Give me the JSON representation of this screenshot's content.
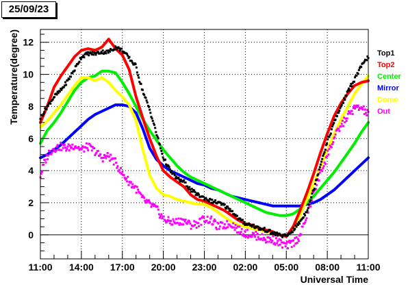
{
  "header": {
    "date": "25/09/23"
  },
  "chart_data": {
    "type": "scatter",
    "title": "",
    "xlabel": "Universal Time",
    "ylabel": "Temperature(degree)",
    "xlim": [
      0,
      24
    ],
    "ylim": [
      -1.5,
      12.8
    ],
    "x_ticks": [
      {
        "x": 0,
        "label": "11:00"
      },
      {
        "x": 3,
        "label": "14:00"
      },
      {
        "x": 6,
        "label": "17:00"
      },
      {
        "x": 9,
        "label": "20:00"
      },
      {
        "x": 12,
        "label": "23:00"
      },
      {
        "x": 15,
        "label": "02:00"
      },
      {
        "x": 18,
        "label": "05:00"
      },
      {
        "x": 21,
        "label": "08:00"
      },
      {
        "x": 24,
        "label": "11:00"
      }
    ],
    "y_ticks": [
      0,
      2,
      4,
      6,
      8,
      10,
      12
    ],
    "grid": true,
    "legend_position": "right",
    "series": [
      {
        "name": "Top1",
        "color": "#000000",
        "style": "scatter",
        "points": [
          [
            0,
            7.3
          ],
          [
            0.5,
            8.0
          ],
          [
            1,
            8.6
          ],
          [
            1.5,
            9.0
          ],
          [
            2,
            9.6
          ],
          [
            2.5,
            10.3
          ],
          [
            3,
            11.1
          ],
          [
            3.5,
            11.3
          ],
          [
            4,
            11.3
          ],
          [
            4.5,
            11.4
          ],
          [
            5,
            11.4
          ],
          [
            5.5,
            11.7
          ],
          [
            6,
            11.5
          ],
          [
            6.5,
            11.0
          ],
          [
            7,
            10.5
          ],
          [
            7.3,
            9.5
          ],
          [
            7.6,
            8.7
          ],
          [
            8,
            7.8
          ],
          [
            8.5,
            6.3
          ],
          [
            9,
            4.8
          ],
          [
            9.5,
            4.0
          ],
          [
            10,
            3.5
          ],
          [
            10.5,
            3.3
          ],
          [
            11,
            2.8
          ],
          [
            11.5,
            2.5
          ],
          [
            12,
            2.3
          ],
          [
            12.5,
            2.1
          ],
          [
            13,
            2.0
          ],
          [
            13.5,
            1.8
          ],
          [
            14,
            1.5
          ],
          [
            14.5,
            1.0
          ],
          [
            15,
            0.7
          ],
          [
            15.5,
            0.6
          ],
          [
            16,
            0.4
          ],
          [
            16.5,
            0.3
          ],
          [
            17,
            0.1
          ],
          [
            17.5,
            0.0
          ],
          [
            18,
            -0.1
          ],
          [
            18.5,
            0.3
          ],
          [
            19,
            0.8
          ],
          [
            19.5,
            1.5
          ],
          [
            20,
            2.8
          ],
          [
            20.5,
            4.4
          ],
          [
            21,
            5.8
          ],
          [
            21.5,
            7.0
          ],
          [
            22,
            8.0
          ],
          [
            22.5,
            8.9
          ],
          [
            23,
            9.7
          ],
          [
            23.5,
            10.5
          ],
          [
            24,
            11.1
          ]
        ]
      },
      {
        "name": "Top2",
        "color": "#ff0000",
        "style": "line",
        "points": [
          [
            0,
            7.0
          ],
          [
            0.5,
            8.0
          ],
          [
            1,
            9.2
          ],
          [
            1.5,
            9.9
          ],
          [
            2,
            10.5
          ],
          [
            2.5,
            11.1
          ],
          [
            3,
            11.5
          ],
          [
            3.5,
            11.6
          ],
          [
            4,
            11.5
          ],
          [
            4.5,
            11.7
          ],
          [
            5,
            12.2
          ],
          [
            5.5,
            11.6
          ],
          [
            6,
            11.2
          ],
          [
            6.5,
            10.3
          ],
          [
            7,
            8.6
          ],
          [
            7.3,
            7.8
          ],
          [
            7.6,
            7.0
          ],
          [
            8,
            6.0
          ],
          [
            8.5,
            4.9
          ],
          [
            9,
            4.0
          ],
          [
            9.5,
            3.6
          ],
          [
            10,
            3.3
          ],
          [
            10.5,
            3.0
          ],
          [
            11,
            2.5
          ],
          [
            11.5,
            2.2
          ],
          [
            12,
            2.1
          ],
          [
            12.5,
            1.9
          ],
          [
            13,
            1.7
          ],
          [
            13.5,
            1.5
          ],
          [
            14,
            1.2
          ],
          [
            14.5,
            0.9
          ],
          [
            15,
            0.7
          ],
          [
            15.5,
            0.6
          ],
          [
            16,
            0.4
          ],
          [
            16.5,
            0.3
          ],
          [
            17,
            0.2
          ],
          [
            17.5,
            0.0
          ],
          [
            18,
            -0.1
          ],
          [
            18.5,
            0.5
          ],
          [
            19,
            1.5
          ],
          [
            19.5,
            2.6
          ],
          [
            20,
            3.8
          ],
          [
            20.5,
            5.1
          ],
          [
            21,
            6.3
          ],
          [
            21.5,
            7.4
          ],
          [
            22,
            8.2
          ],
          [
            22.5,
            8.8
          ],
          [
            23,
            9.3
          ],
          [
            23.5,
            9.5
          ],
          [
            24,
            9.6
          ]
        ]
      },
      {
        "name": "Center",
        "color": "#00ee00",
        "style": "line",
        "points": [
          [
            0,
            5.7
          ],
          [
            0.5,
            6.5
          ],
          [
            1,
            7.0
          ],
          [
            1.5,
            7.6
          ],
          [
            2,
            8.3
          ],
          [
            2.5,
            9.0
          ],
          [
            3,
            9.5
          ],
          [
            3.5,
            9.8
          ],
          [
            4,
            9.9
          ],
          [
            4.5,
            10.2
          ],
          [
            5,
            10.2
          ],
          [
            5.5,
            10.1
          ],
          [
            6,
            9.5
          ],
          [
            6.5,
            8.8
          ],
          [
            7,
            8.0
          ],
          [
            7.5,
            7.2
          ],
          [
            8,
            6.5
          ],
          [
            8.5,
            5.9
          ],
          [
            9,
            5.3
          ],
          [
            9.5,
            4.8
          ],
          [
            10,
            4.3
          ],
          [
            10.5,
            3.9
          ],
          [
            11,
            3.6
          ],
          [
            11.5,
            3.4
          ],
          [
            12,
            3.2
          ],
          [
            12.5,
            3.0
          ],
          [
            13,
            2.8
          ],
          [
            13.5,
            2.6
          ],
          [
            14,
            2.4
          ],
          [
            14.5,
            2.2
          ],
          [
            15,
            2.0
          ],
          [
            15.5,
            1.8
          ],
          [
            16,
            1.6
          ],
          [
            16.5,
            1.4
          ],
          [
            17,
            1.3
          ],
          [
            17.5,
            1.2
          ],
          [
            18,
            1.2
          ],
          [
            18.5,
            1.3
          ],
          [
            19,
            1.6
          ],
          [
            19.5,
            2.0
          ],
          [
            20,
            2.4
          ],
          [
            20.5,
            2.9
          ],
          [
            21,
            3.4
          ],
          [
            21.5,
            3.9
          ],
          [
            22,
            4.5
          ],
          [
            22.5,
            5.1
          ],
          [
            23,
            5.7
          ],
          [
            23.5,
            6.4
          ],
          [
            24,
            7.0
          ]
        ]
      },
      {
        "name": "Mirror",
        "color": "#0000ff",
        "style": "line",
        "points": [
          [
            0,
            4.8
          ],
          [
            0.5,
            5.0
          ],
          [
            1,
            5.3
          ],
          [
            1.5,
            5.6
          ],
          [
            2,
            6.0
          ],
          [
            2.5,
            6.4
          ],
          [
            3,
            6.8
          ],
          [
            3.5,
            7.2
          ],
          [
            4,
            7.5
          ],
          [
            4.5,
            7.7
          ],
          [
            5,
            7.9
          ],
          [
            5.5,
            8.1
          ],
          [
            6,
            8.1
          ],
          [
            6.5,
            8.0
          ],
          [
            7,
            7.6
          ],
          [
            7.5,
            6.6
          ],
          [
            8,
            5.4
          ],
          [
            8.5,
            4.7
          ],
          [
            9,
            4.3
          ],
          [
            9.5,
            4.0
          ],
          [
            10,
            3.8
          ],
          [
            10.5,
            3.6
          ],
          [
            11,
            3.4
          ],
          [
            11.5,
            3.2
          ],
          [
            12,
            3.1
          ],
          [
            12.5,
            2.9
          ],
          [
            13,
            2.8
          ],
          [
            13.5,
            2.6
          ],
          [
            14,
            2.4
          ],
          [
            14.5,
            2.3
          ],
          [
            15,
            2.2
          ],
          [
            15.5,
            2.1
          ],
          [
            16,
            2.0
          ],
          [
            16.5,
            1.9
          ],
          [
            17,
            1.8
          ],
          [
            17.5,
            1.8
          ],
          [
            18,
            1.8
          ],
          [
            18.5,
            1.8
          ],
          [
            19,
            1.8
          ],
          [
            19.5,
            1.9
          ],
          [
            20,
            2.0
          ],
          [
            20.5,
            2.2
          ],
          [
            21,
            2.5
          ],
          [
            21.5,
            2.8
          ],
          [
            22,
            3.2
          ],
          [
            22.5,
            3.6
          ],
          [
            23,
            4.0
          ],
          [
            23.5,
            4.4
          ],
          [
            24,
            4.8
          ]
        ]
      },
      {
        "name": "Dome",
        "color": "#ffff00",
        "style": "line",
        "points": [
          [
            0,
            6.7
          ],
          [
            0.5,
            7.1
          ],
          [
            1,
            7.6
          ],
          [
            1.5,
            8.1
          ],
          [
            2,
            8.7
          ],
          [
            2.5,
            9.3
          ],
          [
            3,
            9.8
          ],
          [
            3.5,
            9.8
          ],
          [
            4,
            9.6
          ],
          [
            4.5,
            9.8
          ],
          [
            5,
            9.5
          ],
          [
            5.5,
            9.0
          ],
          [
            6,
            8.6
          ],
          [
            6.5,
            8.1
          ],
          [
            7,
            7.1
          ],
          [
            7.5,
            5.3
          ],
          [
            8,
            3.7
          ],
          [
            8.5,
            2.9
          ],
          [
            9,
            2.5
          ],
          [
            9.5,
            2.4
          ],
          [
            10,
            2.2
          ],
          [
            10.5,
            2.1
          ],
          [
            11,
            2.0
          ],
          [
            11.5,
            1.9
          ],
          [
            12,
            1.9
          ],
          [
            12.5,
            1.7
          ],
          [
            13,
            1.4
          ],
          [
            13.5,
            1.1
          ],
          [
            14,
            0.8
          ],
          [
            14.5,
            0.6
          ],
          [
            15,
            0.5
          ],
          [
            15.5,
            0.4
          ],
          [
            16,
            0.3
          ],
          [
            16.5,
            0.2
          ],
          [
            17,
            0.1
          ],
          [
            17.5,
            0.0
          ],
          [
            18,
            -0.1
          ],
          [
            18.5,
            0.4
          ],
          [
            19,
            1.2
          ],
          [
            19.5,
            2.2
          ],
          [
            20,
            3.2
          ],
          [
            20.5,
            4.2
          ],
          [
            21,
            5.3
          ],
          [
            21.5,
            6.3
          ],
          [
            22,
            7.2
          ],
          [
            22.5,
            8.0
          ],
          [
            23,
            8.8
          ],
          [
            23.5,
            9.4
          ],
          [
            24,
            9.9
          ]
        ]
      },
      {
        "name": "Out",
        "color": "#ff00ff",
        "style": "scatter",
        "points": [
          [
            0,
            3.7
          ],
          [
            0.3,
            4.5
          ],
          [
            0.6,
            5.1
          ],
          [
            1,
            5.4
          ],
          [
            1.5,
            5.5
          ],
          [
            2,
            5.4
          ],
          [
            2.5,
            5.6
          ],
          [
            3,
            5.3
          ],
          [
            3.5,
            5.5
          ],
          [
            4,
            5.2
          ],
          [
            4.5,
            4.8
          ],
          [
            5,
            4.9
          ],
          [
            5.5,
            4.5
          ],
          [
            6,
            3.8
          ],
          [
            6.5,
            3.3
          ],
          [
            7,
            2.9
          ],
          [
            7.5,
            2.2
          ],
          [
            8,
            1.9
          ],
          [
            8.5,
            1.6
          ],
          [
            9,
            1.0
          ],
          [
            9.5,
            0.8
          ],
          [
            10,
            0.8
          ],
          [
            10.5,
            0.9
          ],
          [
            11,
            0.6
          ],
          [
            11.5,
            0.7
          ],
          [
            12,
            1.0
          ],
          [
            12.5,
            0.9
          ],
          [
            13,
            0.5
          ],
          [
            13.5,
            0.6
          ],
          [
            14,
            0.7
          ],
          [
            14.5,
            0.3
          ],
          [
            15,
            0.1
          ],
          [
            15.5,
            0.0
          ],
          [
            16,
            -0.1
          ],
          [
            16.5,
            -0.3
          ],
          [
            17,
            -0.3
          ],
          [
            17.5,
            -0.5
          ],
          [
            18,
            -0.7
          ],
          [
            18.5,
            -0.5
          ],
          [
            19,
            -0.1
          ],
          [
            19.5,
            1.2
          ],
          [
            20,
            2.6
          ],
          [
            20.5,
            3.8
          ],
          [
            21,
            5.0
          ],
          [
            21.5,
            6.0
          ],
          [
            22,
            6.8
          ],
          [
            22.5,
            7.4
          ],
          [
            23,
            7.9
          ],
          [
            23.5,
            7.9
          ],
          [
            24,
            7.5
          ]
        ]
      }
    ]
  }
}
